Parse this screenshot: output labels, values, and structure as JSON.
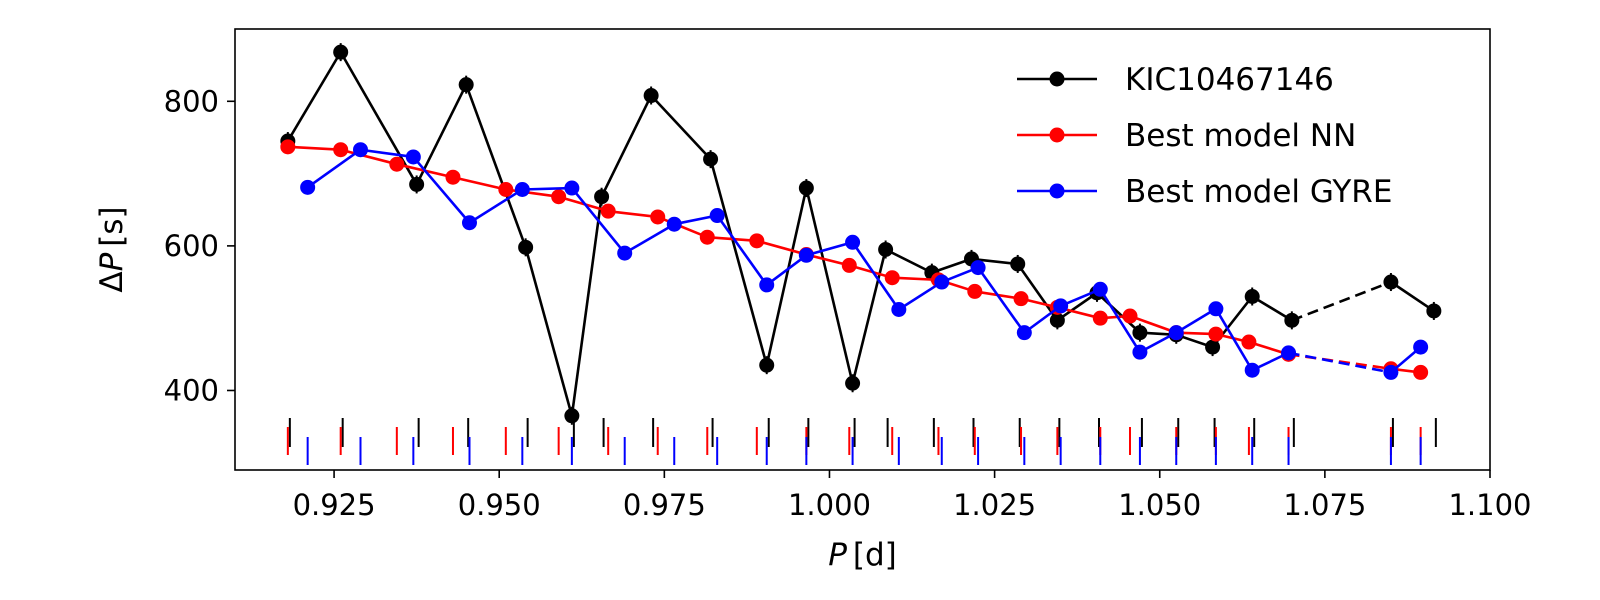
{
  "chart_data": {
    "type": "line",
    "title": "",
    "xlabel_var": "P",
    "xlabel_unit": "[d]",
    "ylabel_delta": "Δ",
    "ylabel_var": "P",
    "ylabel_unit": "[s]",
    "xlim": [
      0.91,
      1.1
    ],
    "ylim": [
      290,
      900
    ],
    "xticks": [
      0.925,
      0.95,
      0.975,
      1.0,
      1.025,
      1.05,
      1.075,
      1.1
    ],
    "xtick_labels": [
      "0.925",
      "0.950",
      "0.975",
      "1.000",
      "1.025",
      "1.050",
      "1.075",
      "1.100"
    ],
    "yticks": [
      400,
      600,
      800
    ],
    "ytick_labels": [
      "400",
      "600",
      "800"
    ],
    "legend_position": "top-right",
    "series": [
      {
        "name": "KIC10467146",
        "color": "#000000",
        "x": [
          0.918,
          0.926,
          0.9375,
          0.945,
          0.954,
          0.961,
          0.9655,
          0.973,
          0.982,
          0.9905,
          0.9965,
          1.0035,
          1.0085,
          1.0155,
          1.0215,
          1.0285,
          1.0345,
          1.0405,
          1.047,
          1.0525,
          1.058,
          1.064,
          1.07,
          1.085,
          1.0915
        ],
        "y": [
          745,
          868,
          685,
          823,
          598,
          365,
          668,
          808,
          720,
          435,
          680,
          410,
          595,
          563,
          582,
          575,
          497,
          535,
          480,
          477,
          460,
          530,
          497,
          550,
          510
        ],
        "dashed_segments": [
          [
            22,
            23
          ]
        ]
      },
      {
        "name": "Best model NN",
        "color": "#ff0000",
        "x": [
          0.918,
          0.926,
          0.9345,
          0.943,
          0.951,
          0.959,
          0.9665,
          0.974,
          0.9815,
          0.989,
          0.9965,
          1.003,
          1.0095,
          1.0165,
          1.022,
          1.029,
          1.0345,
          1.041,
          1.0455,
          1.0525,
          1.0585,
          1.0635,
          1.0695,
          1.085,
          1.0895
        ],
        "y": [
          737,
          733,
          713,
          695,
          678,
          668,
          648,
          640,
          612,
          607,
          588,
          573,
          556,
          553,
          537,
          527,
          515,
          500,
          503,
          480,
          478,
          467,
          450,
          430,
          425
        ],
        "dashed_segments": [
          [
            22,
            23
          ]
        ]
      },
      {
        "name": "Best model GYRE",
        "color": "#0000ff",
        "x": [
          0.921,
          0.929,
          0.937,
          0.9455,
          0.9535,
          0.961,
          0.969,
          0.9765,
          0.983,
          0.9905,
          0.9965,
          1.0035,
          1.0105,
          1.017,
          1.0225,
          1.0295,
          1.035,
          1.041,
          1.047,
          1.0525,
          1.0585,
          1.064,
          1.0695,
          1.085,
          1.0895
        ],
        "y": [
          681,
          733,
          723,
          632,
          678,
          680,
          590,
          630,
          642,
          546,
          587,
          605,
          512,
          550,
          570,
          480,
          517,
          540,
          453,
          480,
          513,
          428,
          452,
          425,
          460
        ],
        "dashed_segments": [
          [
            22,
            23
          ]
        ]
      }
    ],
    "rug_marks": {
      "black": [
        0.918,
        0.926,
        0.9375,
        0.945,
        0.954,
        0.961,
        0.9655,
        0.973,
        0.982,
        0.9905,
        0.9965,
        1.0035,
        1.0085,
        1.0155,
        1.0215,
        1.0285,
        1.0345,
        1.0405,
        1.047,
        1.0525,
        1.058,
        1.064,
        1.07,
        1.085,
        1.0915
      ],
      "red": [
        0.918,
        0.926,
        0.9345,
        0.943,
        0.951,
        0.959,
        0.9665,
        0.974,
        0.9815,
        0.989,
        0.9965,
        1.003,
        1.0095,
        1.0165,
        1.022,
        1.029,
        1.0345,
        1.041,
        1.0455,
        1.0525,
        1.0585,
        1.0635,
        1.0695,
        1.085,
        1.0895
      ],
      "blue": [
        0.921,
        0.929,
        0.937,
        0.9455,
        0.9535,
        0.961,
        0.969,
        0.9765,
        0.983,
        0.9905,
        0.9965,
        1.0035,
        1.0105,
        1.017,
        1.0225,
        1.0295,
        1.035,
        1.041,
        1.047,
        1.0525,
        1.0585,
        1.064,
        1.0695,
        1.085,
        1.0895
      ]
    }
  }
}
